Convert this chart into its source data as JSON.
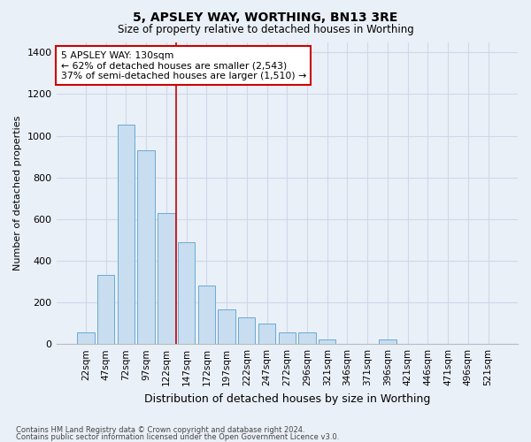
{
  "title": "5, APSLEY WAY, WORTHING, BN13 3RE",
  "subtitle": "Size of property relative to detached houses in Worthing",
  "xlabel": "Distribution of detached houses by size in Worthing",
  "ylabel": "Number of detached properties",
  "footnote1": "Contains HM Land Registry data © Crown copyright and database right 2024.",
  "footnote2": "Contains public sector information licensed under the Open Government Licence v3.0.",
  "categories": [
    "22sqm",
    "47sqm",
    "72sqm",
    "97sqm",
    "122sqm",
    "147sqm",
    "172sqm",
    "197sqm",
    "222sqm",
    "247sqm",
    "272sqm",
    "296sqm",
    "321sqm",
    "346sqm",
    "371sqm",
    "396sqm",
    "421sqm",
    "446sqm",
    "471sqm",
    "496sqm",
    "521sqm"
  ],
  "values": [
    55,
    330,
    1055,
    930,
    630,
    490,
    280,
    165,
    130,
    100,
    55,
    55,
    20,
    0,
    0,
    20,
    0,
    0,
    0,
    0,
    0
  ],
  "bar_color": "#c8ddef",
  "bar_edge_color": "#6aaad4",
  "grid_color": "#d0d8e8",
  "background_color": "#eaf0f8",
  "vline_x": 4.5,
  "vline_color": "#cc0000",
  "annotation_title": "5 APSLEY WAY: 130sqm",
  "annotation_line1": "← 62% of detached houses are smaller (2,543)",
  "annotation_line2": "37% of semi-detached houses are larger (1,510) →",
  "annotation_box_color": "white",
  "annotation_box_edge": "#cc0000",
  "ylim": [
    0,
    1450
  ],
  "yticks": [
    0,
    200,
    400,
    600,
    800,
    1000,
    1200,
    1400
  ]
}
